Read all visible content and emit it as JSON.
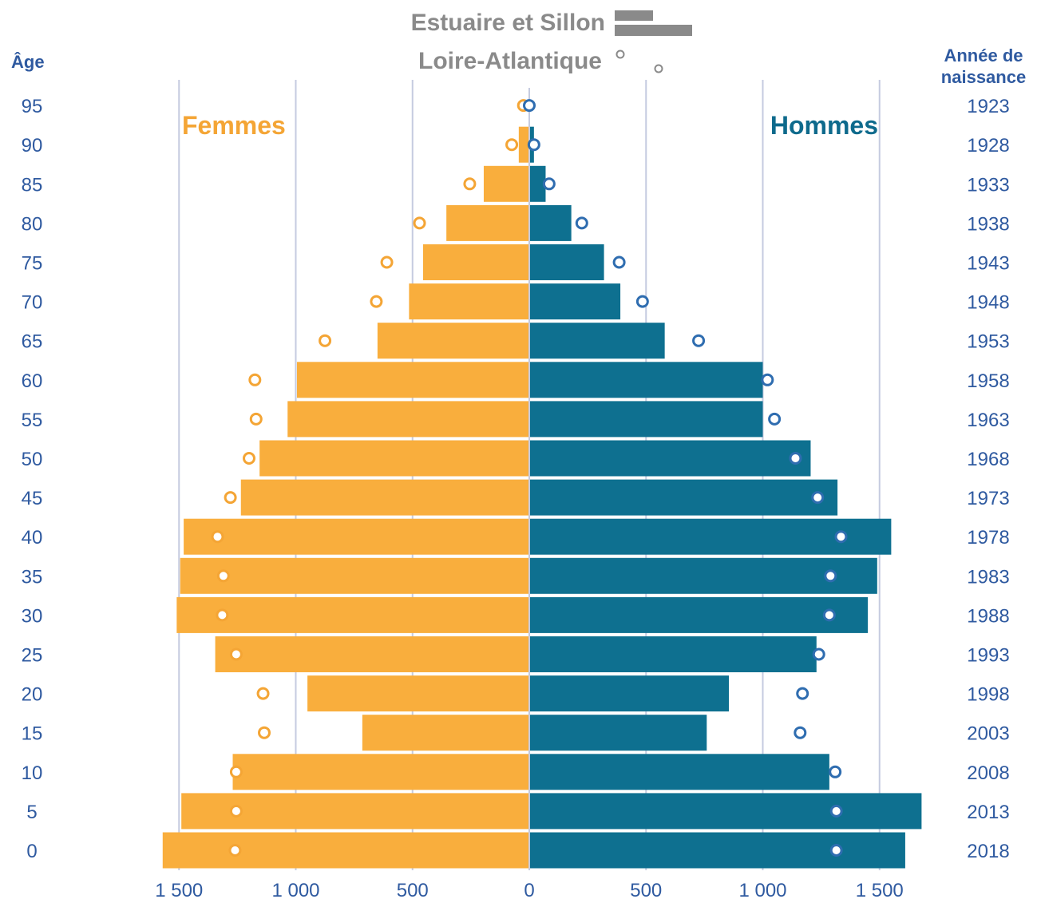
{
  "chart_data": {
    "type": "bar",
    "subtype": "population-pyramid",
    "legend": {
      "position": "top-center",
      "entries": [
        {
          "label": "Estuaire et Sillon",
          "marker": "bars"
        },
        {
          "label": "Loire-Atlantique",
          "marker": "circles"
        }
      ]
    },
    "left_axis_title": "Âge",
    "right_axis_title_line1": "Année de",
    "right_axis_title_line2": "naissance",
    "female_label": "Femmes",
    "male_label": "Hommes",
    "x_ticks": [
      "1 500",
      "1 000",
      "500",
      "0",
      "500",
      "1 000",
      "1 500"
    ],
    "x_tick_values": [
      -1500,
      -1000,
      -500,
      0,
      500,
      1000,
      1500
    ],
    "xlim": [
      -1560,
      1680
    ],
    "age_groups": [
      "0",
      "5",
      "10",
      "15",
      "20",
      "25",
      "30",
      "35",
      "40",
      "45",
      "50",
      "55",
      "60",
      "65",
      "70",
      "75",
      "80",
      "85",
      "90",
      "95"
    ],
    "birth_years": [
      "2018",
      "2013",
      "2008",
      "2003",
      "1998",
      "1993",
      "1988",
      "1983",
      "1978",
      "1973",
      "1968",
      "1963",
      "1958",
      "1953",
      "1948",
      "1943",
      "1938",
      "1933",
      "1928",
      "1923"
    ],
    "series": [
      {
        "name": "Femmes - Estuaire et Sillon",
        "kind": "bar",
        "side": "left",
        "values": [
          1570,
          1490,
          1270,
          715,
          950,
          1345,
          1510,
          1495,
          1480,
          1235,
          1155,
          1035,
          995,
          650,
          515,
          455,
          355,
          195,
          45,
          0
        ]
      },
      {
        "name": "Hommes - Estuaire et Sillon",
        "kind": "bar",
        "side": "right",
        "values": [
          1610,
          1680,
          1285,
          760,
          855,
          1230,
          1450,
          1490,
          1550,
          1320,
          1205,
          1000,
          1000,
          580,
          390,
          320,
          180,
          70,
          20,
          0
        ]
      },
      {
        "name": "Femmes - Loire-Atlantique",
        "kind": "circle",
        "side": "left",
        "values": [
          1260,
          1255,
          1255,
          1135,
          1140,
          1255,
          1315,
          1310,
          1335,
          1280,
          1200,
          1170,
          1175,
          875,
          655,
          610,
          470,
          255,
          75,
          25
        ]
      },
      {
        "name": "Hommes - Loire-Atlantique",
        "kind": "circle",
        "side": "right",
        "values": [
          1315,
          1315,
          1310,
          1160,
          1170,
          1240,
          1285,
          1290,
          1335,
          1235,
          1140,
          1050,
          1020,
          725,
          485,
          385,
          225,
          85,
          20,
          0
        ]
      }
    ],
    "colors": {
      "female_bar": "#f9ae3d",
      "male_bar": "#0e7090",
      "female_circle": "#f4a535",
      "male_circle": "#2f6db0",
      "gridline": "#c5cbe0",
      "legend_grey": "#8a8a8a",
      "tick_text": "#2f5aa0",
      "female_label": "#f4a535",
      "male_label": "#0e6a8c"
    },
    "grid": true
  }
}
